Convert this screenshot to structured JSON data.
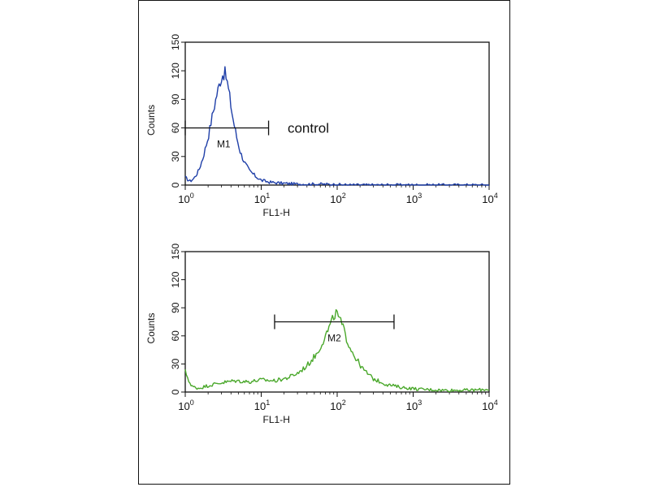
{
  "chart_data": [
    {
      "type": "line",
      "title": "",
      "xlabel": "FL1-H",
      "ylabel": "Counts",
      "x_scale": "log",
      "xlim": [
        1,
        10000
      ],
      "ylim": [
        0,
        150
      ],
      "x_ticks": [
        {
          "base": "10",
          "exp": "0"
        },
        {
          "base": "10",
          "exp": "1"
        },
        {
          "base": "10",
          "exp": "2"
        },
        {
          "base": "10",
          "exp": "3"
        },
        {
          "base": "10",
          "exp": "4"
        }
      ],
      "y_ticks": [
        "0",
        "30",
        "60",
        "90",
        "120",
        "150"
      ],
      "grid": false,
      "series": [
        {
          "color": "#1f3fa8",
          "x": [
            1.0,
            1.15,
            1.3,
            1.5,
            1.7,
            2.0,
            2.3,
            2.6,
            2.9,
            3.1,
            3.3,
            3.5,
            3.8,
            4.2,
            4.7,
            5.3,
            6.0,
            7.0,
            8.5,
            10.0,
            13.0,
            18.0,
            30.0,
            60.0,
            150.0,
            500.0,
            2000.0,
            10000.0
          ],
          "y": [
            8,
            4,
            7,
            15,
            28,
            50,
            75,
            95,
            110,
            116,
            118,
            112,
            95,
            72,
            52,
            35,
            24,
            15,
            9,
            5,
            3,
            2,
            1,
            1,
            0,
            0,
            0,
            0
          ]
        }
      ],
      "markers": [
        {
          "label": "M1",
          "x_start": 1.0,
          "x_end": 12.5,
          "y": 60
        }
      ],
      "annotations": [
        {
          "text": "control",
          "x": 15,
          "y": 60
        }
      ]
    },
    {
      "type": "line",
      "title": "",
      "xlabel": "FL1-H",
      "ylabel": "Counts",
      "x_scale": "log",
      "xlim": [
        1,
        10000
      ],
      "ylim": [
        0,
        150
      ],
      "x_ticks": [
        {
          "base": "10",
          "exp": "0"
        },
        {
          "base": "10",
          "exp": "1"
        },
        {
          "base": "10",
          "exp": "2"
        },
        {
          "base": "10",
          "exp": "3"
        },
        {
          "base": "10",
          "exp": "4"
        }
      ],
      "y_ticks": [
        "0",
        "30",
        "60",
        "90",
        "120",
        "150"
      ],
      "grid": false,
      "series": [
        {
          "color": "#4aa82b",
          "x": [
            1.0,
            1.2,
            1.5,
            2.0,
            3.0,
            4.5,
            7.0,
            10.0,
            15.0,
            22.0,
            30.0,
            40.0,
            55.0,
            70.0,
            85.0,
            95.0,
            105.0,
            120.0,
            140.0,
            170.0,
            220.0,
            300.0,
            450.0,
            700.0,
            1200.0,
            2500.0,
            6000.0,
            10000.0
          ],
          "y": [
            22,
            6,
            4,
            7,
            10,
            12,
            11,
            13,
            12,
            15,
            20,
            28,
            42,
            60,
            75,
            85,
            80,
            68,
            52,
            38,
            24,
            14,
            8,
            5,
            3,
            2,
            2,
            3
          ]
        }
      ],
      "markers": [
        {
          "label": "M2",
          "x_start": 15.0,
          "x_end": 560.0,
          "y": 75
        }
      ],
      "annotations": []
    }
  ]
}
